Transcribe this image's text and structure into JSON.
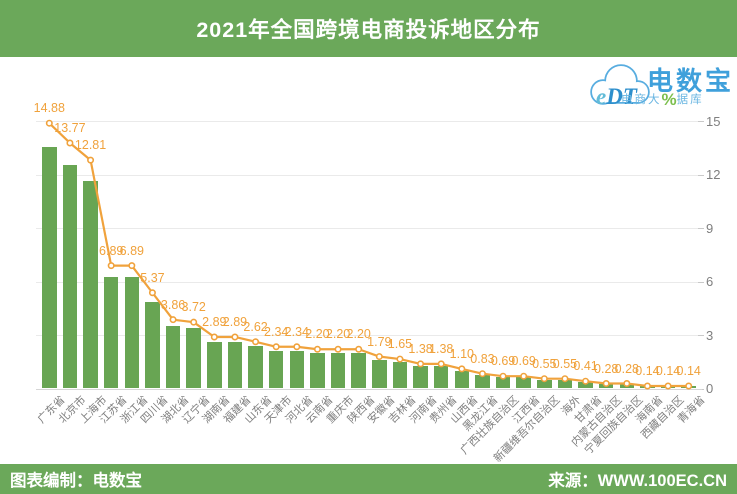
{
  "title": "2021年全国跨境电商投诉地区分布",
  "logo": {
    "cloud_text": "eDT",
    "brand": "电数宝",
    "tagline_prefix": "电商大",
    "tagline_percent": "%",
    "tagline_suffix": "据库"
  },
  "footer": {
    "left": "图表编制：电数宝",
    "right": "来源：WWW.100EC.CN"
  },
  "colors": {
    "band_green": "#6BA85A",
    "bar_green": "#68A553",
    "line_orange": "#F0A23C",
    "marker_fill": "#FFFFFF",
    "grid_gray": "#EAEAEA",
    "axis_gray": "#D6D6D6",
    "tick_text": "#7F7F7F",
    "logo_blue": "#3FA0DB",
    "logo_cloud_blue": "#58ADE0",
    "logo_green": "#7CBF4D"
  },
  "chart_data": {
    "type": "bar",
    "line_overlay": true,
    "title": "2021年全国跨境电商投诉地区分布",
    "unit": "%",
    "categories": [
      "广东省",
      "北京市",
      "上海市",
      "江苏省",
      "浙江省",
      "四川省",
      "湖北省",
      "辽宁省",
      "湖南省",
      "福建省",
      "山东省",
      "天津市",
      "河北省",
      "云南省",
      "重庆市",
      "陕西省",
      "安徽省",
      "吉林省",
      "河南省",
      "贵州省",
      "山西省",
      "黑龙江省",
      "广西壮族自治区",
      "江西省",
      "新疆维吾尔自治区",
      "海外",
      "甘肃省",
      "内蒙古自治区",
      "宁夏回族自治区",
      "海南省",
      "西藏自治区",
      "青海省"
    ],
    "values": [
      14.88,
      13.77,
      12.81,
      6.89,
      6.89,
      5.37,
      3.86,
      3.72,
      2.89,
      2.89,
      2.62,
      2.34,
      2.34,
      2.2,
      2.2,
      2.2,
      1.79,
      1.65,
      1.38,
      1.38,
      1.1,
      0.83,
      0.69,
      0.69,
      0.55,
      0.55,
      0.41,
      0.28,
      0.28,
      0.14,
      0.14,
      0.14
    ],
    "yticks": [
      0,
      3,
      6,
      9,
      12,
      15
    ],
    "ylim": [
      0,
      15
    ],
    "yaxis_side": "right",
    "legend": "none",
    "grid": "horizontal"
  }
}
